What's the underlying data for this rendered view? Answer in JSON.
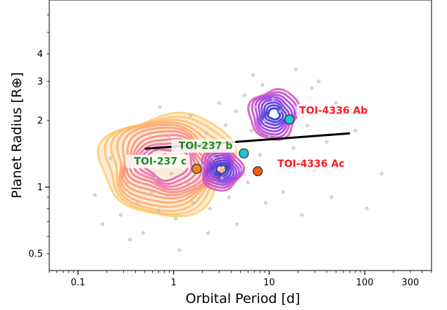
{
  "chart_data": {
    "type": "scatter",
    "xlabel": "Orbital Period [d]",
    "ylabel": "Planet Radius [R⊕]",
    "x_scale": "log",
    "y_scale": "log",
    "xlim": [
      0.05,
      500
    ],
    "ylim": [
      0.42,
      7.0
    ],
    "x_ticks": [
      {
        "value": 0.1,
        "label": "0.1"
      },
      {
        "value": 1,
        "label": "1"
      },
      {
        "value": 10,
        "label": "10"
      },
      {
        "value": 100,
        "label": "100"
      },
      {
        "value": 300,
        "label": "300"
      }
    ],
    "y_ticks": [
      {
        "value": 0.5,
        "label": "0.5"
      },
      {
        "value": 1,
        "label": "1"
      },
      {
        "value": 2,
        "label": "2"
      },
      {
        "value": 3,
        "label": "3"
      },
      {
        "value": 4,
        "label": "4"
      }
    ],
    "radius_valley_line": {
      "x": [
        0.5,
        70
      ],
      "y": [
        1.49,
        1.75
      ],
      "color": "#000000"
    },
    "highlighted_planets": [
      {
        "label": "TOI-4336 Ab",
        "x": 16.3,
        "y": 2.02,
        "fill": "#21c5d8",
        "text_color": "#ff1a1a"
      },
      {
        "label": "TOI-237 b",
        "x": 5.43,
        "y": 1.42,
        "fill": "#21c5d8",
        "text_color": "#1f8a1f"
      },
      {
        "label": "TOI-237 c",
        "x": 1.74,
        "y": 1.21,
        "fill": "#f08a1a",
        "text_color": "#1f8a1f"
      },
      {
        "label": "TOI-4336 Ac",
        "x": 7.59,
        "y": 1.18,
        "fill": "#f55a1a",
        "text_color": "#ff1a1a"
      }
    ],
    "background_points": [
      [
        0.15,
        0.92
      ],
      [
        0.18,
        0.68
      ],
      [
        0.28,
        0.75
      ],
      [
        0.33,
        1.05
      ],
      [
        0.42,
        0.85
      ],
      [
        0.48,
        0.62
      ],
      [
        0.55,
        1.25
      ],
      [
        0.6,
        0.95
      ],
      [
        0.65,
        1.1
      ],
      [
        0.7,
        0.78
      ],
      [
        0.72,
        2.3
      ],
      [
        0.8,
        1.4
      ],
      [
        0.85,
        0.9
      ],
      [
        0.9,
        1.7
      ],
      [
        0.95,
        1.15
      ],
      [
        1.05,
        0.72
      ],
      [
        1.1,
        1.3
      ],
      [
        1.2,
        1.55
      ],
      [
        1.3,
        0.95
      ],
      [
        1.4,
        1.05
      ],
      [
        1.5,
        2.1
      ],
      [
        1.6,
        0.85
      ],
      [
        1.7,
        1.45
      ],
      [
        1.8,
        1.0
      ],
      [
        2.0,
        1.25
      ],
      [
        2.2,
        1.75
      ],
      [
        2.4,
        0.8
      ],
      [
        2.6,
        1.35
      ],
      [
        2.8,
        1.6
      ],
      [
        3.0,
        2.4
      ],
      [
        3.2,
        1.1
      ],
      [
        3.5,
        1.9
      ],
      [
        3.8,
        0.9
      ],
      [
        4.0,
        1.5
      ],
      [
        4.5,
        2.2
      ],
      [
        5.0,
        1.2
      ],
      [
        5.5,
        2.6
      ],
      [
        6.0,
        1.05
      ],
      [
        6.5,
        1.8
      ],
      [
        7.0,
        2.3
      ],
      [
        8.0,
        1.4
      ],
      [
        8.5,
        2.9
      ],
      [
        9.0,
        2.0
      ],
      [
        10.0,
        1.7
      ],
      [
        11.0,
        2.5
      ],
      [
        12.0,
        1.3
      ],
      [
        13.0,
        2.2
      ],
      [
        14.0,
        0.95
      ],
      [
        15.0,
        2.7
      ],
      [
        18.0,
        1.5
      ],
      [
        20.0,
        2.3
      ],
      [
        22.0,
        0.75
      ],
      [
        25.0,
        1.9
      ],
      [
        28.0,
        2.8
      ],
      [
        30.0,
        1.2
      ],
      [
        35.0,
        2.1
      ],
      [
        40.0,
        1.6
      ],
      [
        45.0,
        0.9
      ],
      [
        50.0,
        2.4
      ],
      [
        60.0,
        1.3
      ],
      [
        80.0,
        1.8
      ],
      [
        105.0,
        0.8
      ],
      [
        150.0,
        1.15
      ],
      [
        0.35,
        0.58
      ],
      [
        1.15,
        0.52
      ],
      [
        2.3,
        0.62
      ],
      [
        4.6,
        0.68
      ],
      [
        9.2,
        0.85
      ],
      [
        0.22,
        1.35
      ],
      [
        19.0,
        3.4
      ],
      [
        33.0,
        3.0
      ],
      [
        6.8,
        3.2
      ]
    ]
  }
}
